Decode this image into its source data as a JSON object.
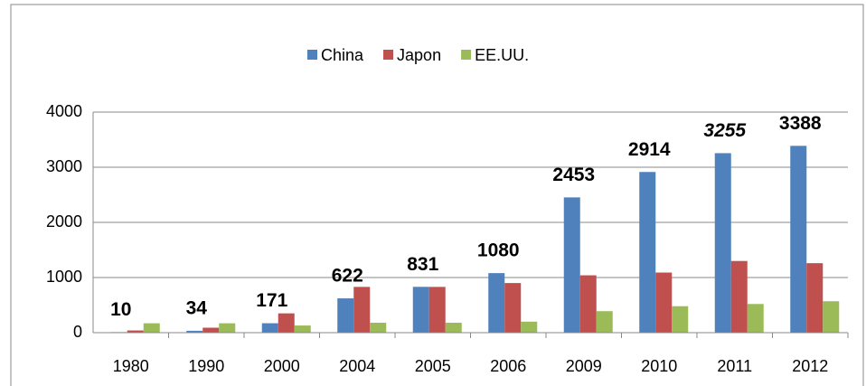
{
  "chart_data": {
    "type": "bar",
    "categories": [
      "1980",
      "1990",
      "2000",
      "2004",
      "2005",
      "2006",
      "2009",
      "2010",
      "2011",
      "2012"
    ],
    "series": [
      {
        "name": "China",
        "color": "#4f81bd",
        "values": [
          10,
          34,
          171,
          622,
          831,
          1080,
          2453,
          2914,
          3255,
          3388
        ]
      },
      {
        "name": "Japon",
        "color": "#c0504d",
        "values": [
          40,
          90,
          350,
          830,
          830,
          900,
          1040,
          1090,
          1300,
          1260
        ]
      },
      {
        "name": "EE.UU.",
        "color": "#9bbb59",
        "values": [
          170,
          170,
          130,
          180,
          180,
          200,
          390,
          480,
          520,
          570
        ]
      }
    ],
    "ylim": [
      0,
      4000
    ],
    "yticks": [
      0,
      1000,
      2000,
      3000,
      4000
    ],
    "grid": true,
    "legend": "top"
  }
}
